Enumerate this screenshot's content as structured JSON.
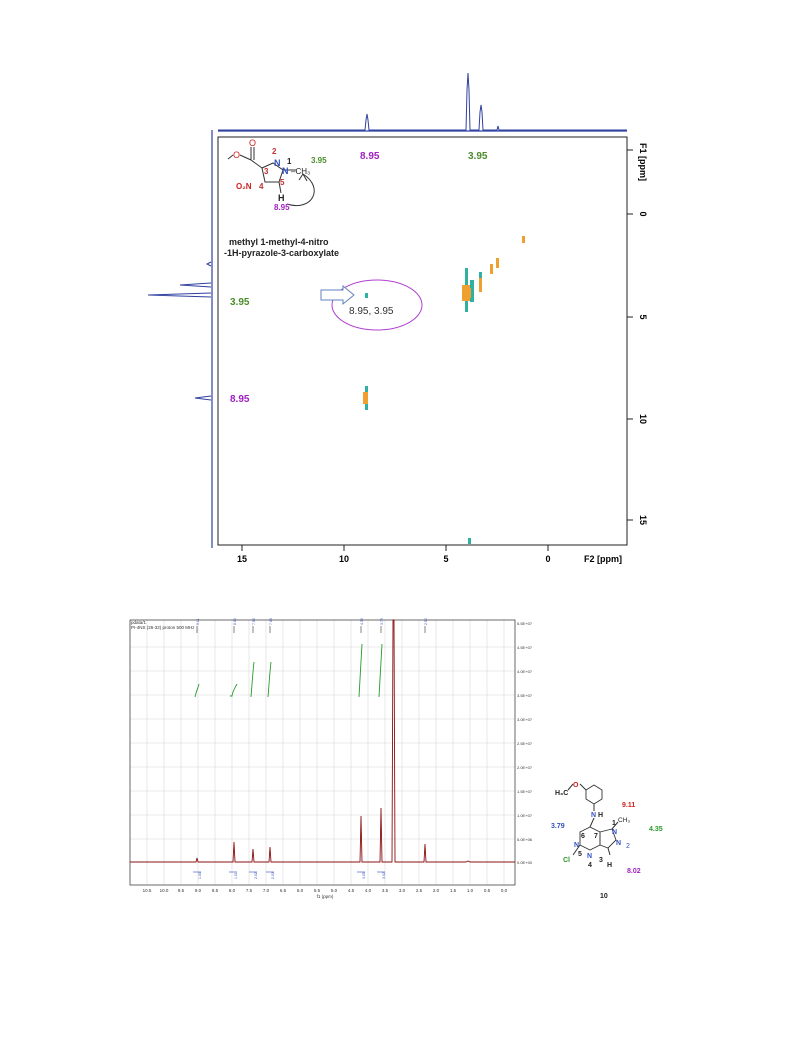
{
  "noesy": {
    "f2_axis_label": "F2 [ppm]",
    "f1_axis_label": "F1 [ppm]",
    "f2_ticks": [
      "15",
      "10",
      "5",
      "0"
    ],
    "f1_ticks": [
      "0",
      "5",
      "10",
      "15"
    ],
    "compound_name_line1": "methyl 1-methyl-4-nitro",
    "compound_name_line2": "-1H-pyrazole-3-carboxylate",
    "top_label_left": "8.95",
    "top_label_right": "3.95",
    "left_label_upper": "3.95",
    "left_label_lower": "8.95",
    "cross_peak_label": "8.95, 3.95",
    "structure": {
      "num_2": "2",
      "num_1": "1",
      "num_3": "3",
      "num_4": "4",
      "num_5": "5",
      "atom_N2": "N",
      "atom_N1": "N",
      "methyl": "–CH₃",
      "nitro": "O₂N",
      "h": "H",
      "o_top": "O",
      "o_ester": "O",
      "shift_methyl": "3.95",
      "shift_h": "8.95"
    },
    "colors": {
      "green": "#4a8c2a",
      "magenta": "#a020c0",
      "orange": "#f0a030",
      "teal": "#30b0a0",
      "projection": "#3040a0"
    }
  },
  "nmr": {
    "header_line1": "pdata/1",
    "header_line2": "PI-4NS (26-32) proton 500 MHz",
    "x_axis_label": "f1 (ppm)",
    "x_ticks": [
      "10.5",
      "10.0",
      "9.5",
      "9.0",
      "8.5",
      "8.0",
      "7.5",
      "7.0",
      "6.5",
      "6.0",
      "5.5",
      "5.0",
      "4.5",
      "4.0",
      "3.5",
      "3.0",
      "2.5",
      "2.0",
      "1.5",
      "1.0",
      "0.5",
      "0.0"
    ],
    "y_ticks": [
      "5.5E+07",
      "4.5E+07",
      "4.0E+07",
      "3.5E+07",
      "3.0E+07",
      "2.5E+07",
      "2.0E+07",
      "1.5E+07",
      "1.0E+07",
      "5.0E+06",
      "0.0E+00"
    ],
    "peak_labels": [
      "9.11",
      "8.02",
      "7.55",
      "7.03",
      "4.35",
      "3.79",
      "2.50"
    ],
    "integral_values": [
      "1.00",
      "1.01",
      "2.02",
      "2.03",
      "3.05",
      "3.02"
    ]
  },
  "structure10": {
    "compound_number": "10",
    "h3co": "H₃C",
    "o": "O",
    "n_h": "N",
    "h": "H",
    "n_6": "6",
    "n_7": "7",
    "n_1": "1",
    "n_5": "5",
    "n_4": "4",
    "n_3": "3",
    "n_2": "2",
    "ring_n_left": "N",
    "ring_n_bottom": "N",
    "ring_n_right_top": "N",
    "ring_n_right": "N",
    "ch3": "CH₃",
    "cl": "Cl",
    "h_ring": "H",
    "shift_ome": "3.79",
    "shift_nh": "9.11",
    "shift_ch3": "4.35",
    "shift_h3": "8.02"
  }
}
